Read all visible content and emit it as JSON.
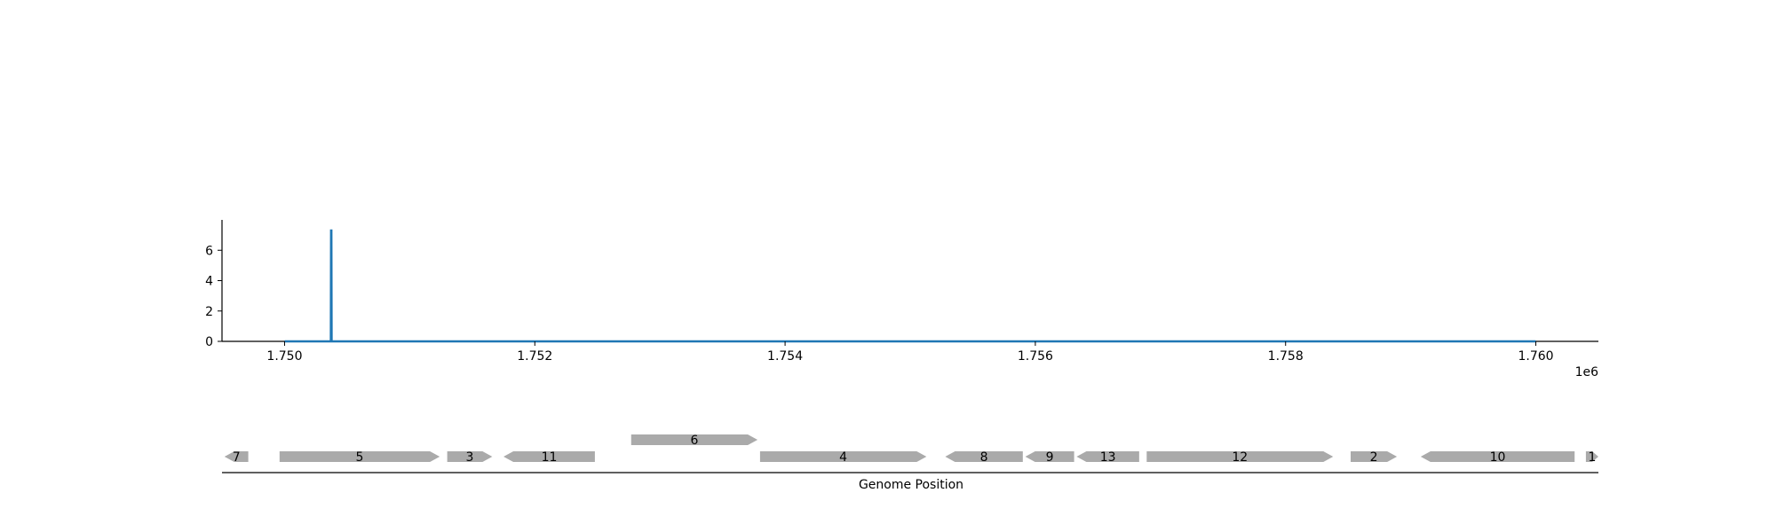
{
  "chart_data": [
    {
      "type": "line",
      "title": "",
      "xlabel": "",
      "ylabel": "",
      "x_offset_label": "1e6",
      "xlim": [
        1749500,
        1760500
      ],
      "ylim": [
        0,
        8
      ],
      "x_ticks": [
        1750000,
        1752000,
        1754000,
        1756000,
        1758000,
        1760000
      ],
      "x_tick_labels": [
        "1.750",
        "1.752",
        "1.754",
        "1.756",
        "1.758",
        "1.760"
      ],
      "y_ticks": [
        0,
        2,
        4,
        6
      ],
      "y_tick_labels": [
        "0",
        "2",
        "4",
        "6"
      ],
      "grid": false,
      "series": [
        {
          "color": "#1f77b4",
          "x": [
            1750000,
            1750370,
            1750372,
            1750374,
            1750376,
            1760000
          ],
          "y": [
            0,
            0,
            7.3,
            7.3,
            0,
            0
          ]
        }
      ]
    },
    {
      "type": "gene-track",
      "xlabel": "Genome Position",
      "xlim": [
        1749500,
        1760500
      ],
      "gene_color": "#aaaaaa",
      "genes": [
        {
          "label": "7",
          "start": 1749520,
          "end": 1749710,
          "strand": -1,
          "row": 0
        },
        {
          "label": "5",
          "start": 1749960,
          "end": 1751240,
          "strand": 1,
          "row": 0
        },
        {
          "label": "3",
          "start": 1751300,
          "end": 1751660,
          "strand": 1,
          "row": 0
        },
        {
          "label": "11",
          "start": 1751750,
          "end": 1752480,
          "strand": -1,
          "row": 0
        },
        {
          "label": "6",
          "start": 1752770,
          "end": 1753780,
          "strand": 1,
          "row": 1
        },
        {
          "label": "4",
          "start": 1753800,
          "end": 1755130,
          "strand": 1,
          "row": 0
        },
        {
          "label": "8",
          "start": 1755280,
          "end": 1755900,
          "strand": -1,
          "row": 0
        },
        {
          "label": "9",
          "start": 1755920,
          "end": 1756310,
          "strand": -1,
          "row": 0
        },
        {
          "label": "13",
          "start": 1756330,
          "end": 1756830,
          "strand": -1,
          "row": 0
        },
        {
          "label": "12",
          "start": 1756890,
          "end": 1758380,
          "strand": 1,
          "row": 0
        },
        {
          "label": "2",
          "start": 1758520,
          "end": 1758890,
          "strand": 1,
          "row": 0
        },
        {
          "label": "10",
          "start": 1759080,
          "end": 1760310,
          "strand": -1,
          "row": 0
        },
        {
          "label": "1",
          "start": 1760400,
          "end": 1760500,
          "strand": 1,
          "row": 0
        }
      ]
    }
  ]
}
